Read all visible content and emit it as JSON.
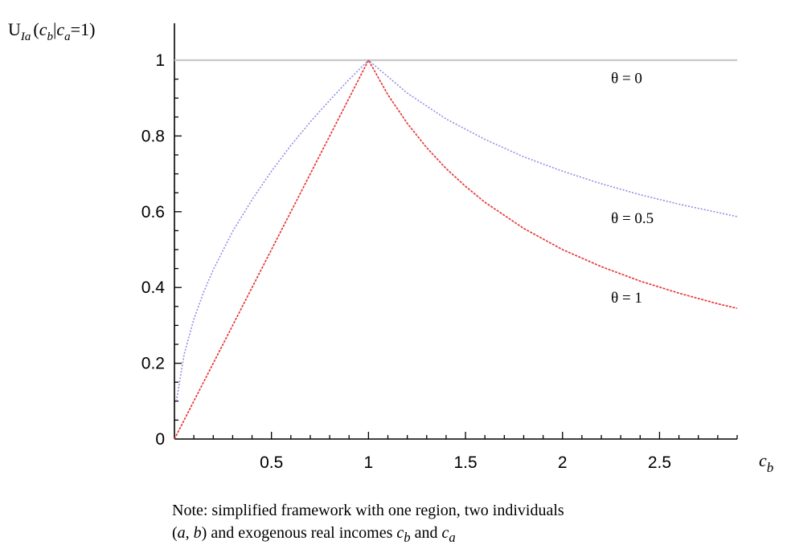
{
  "chart_data": {
    "type": "line",
    "ylabel": "U_{Ia}(c_b|c_a=1)",
    "ylabel_parts": {
      "head": "U",
      "sub": "Ia",
      "open": "(",
      "var1": "c",
      "var1_sub": "b",
      "bar": "|",
      "var2": "c",
      "var2_sub": "a",
      "tail": "=1)"
    },
    "xlabel": "c_b",
    "xlabel_parts": {
      "var": "c",
      "sub": "b"
    },
    "xlim": [
      0,
      2.9
    ],
    "ylim": [
      0,
      1.05
    ],
    "x_ticks": [
      0.5,
      1,
      1.5,
      2,
      2.5
    ],
    "x_tick_labels": [
      "0.5",
      "1",
      "1.5",
      "2",
      "2.5"
    ],
    "y_ticks": [
      0,
      0.2,
      0.4,
      0.6,
      0.8,
      1
    ],
    "y_tick_labels": [
      "0",
      "0.2",
      "0.4",
      "0.6",
      "0.8",
      "1"
    ],
    "grid": false,
    "series": [
      {
        "name": "θ = 0",
        "color": "#c8c8c8",
        "label_anchor": {
          "x": 2.25,
          "y": 0.94
        },
        "x": [
          0,
          2.9
        ],
        "y": [
          1,
          1
        ]
      },
      {
        "name": "θ = 0.5",
        "color": "#8f8fe6",
        "label_anchor": {
          "x": 2.25,
          "y": 0.57
        },
        "x": [
          0.01,
          0.05,
          0.1,
          0.15,
          0.2,
          0.3,
          0.4,
          0.5,
          0.6,
          0.7,
          0.8,
          0.9,
          1.0,
          1.2,
          1.4,
          1.6,
          1.8,
          2.0,
          2.2,
          2.4,
          2.6,
          2.8,
          2.9
        ],
        "y": [
          0.1,
          0.224,
          0.316,
          0.387,
          0.447,
          0.548,
          0.632,
          0.707,
          0.775,
          0.837,
          0.894,
          0.949,
          1.0,
          0.913,
          0.845,
          0.791,
          0.745,
          0.707,
          0.674,
          0.645,
          0.62,
          0.598,
          0.587
        ]
      },
      {
        "name": "θ = 1",
        "color": "#e63a3a",
        "label_anchor": {
          "x": 2.25,
          "y": 0.36
        },
        "x": [
          0,
          1.0,
          1.1,
          1.2,
          1.3,
          1.4,
          1.5,
          1.6,
          1.8,
          2.0,
          2.2,
          2.4,
          2.6,
          2.8,
          2.9
        ],
        "y": [
          0,
          1.0,
          0.909,
          0.833,
          0.769,
          0.714,
          0.667,
          0.625,
          0.556,
          0.5,
          0.455,
          0.417,
          0.385,
          0.357,
          0.345
        ]
      }
    ]
  },
  "note": {
    "line1": "Note: simplified framework with one region, two individuals",
    "line2_pre": "(",
    "line2_a": "a",
    "line2_comma": ", ",
    "line2_b": "b",
    "line2_mid": ") and exogenous real incomes ",
    "line2_cb": "c",
    "line2_cb_sub": "b",
    "line2_and": " and ",
    "line2_ca": "c",
    "line2_ca_sub": "a"
  }
}
